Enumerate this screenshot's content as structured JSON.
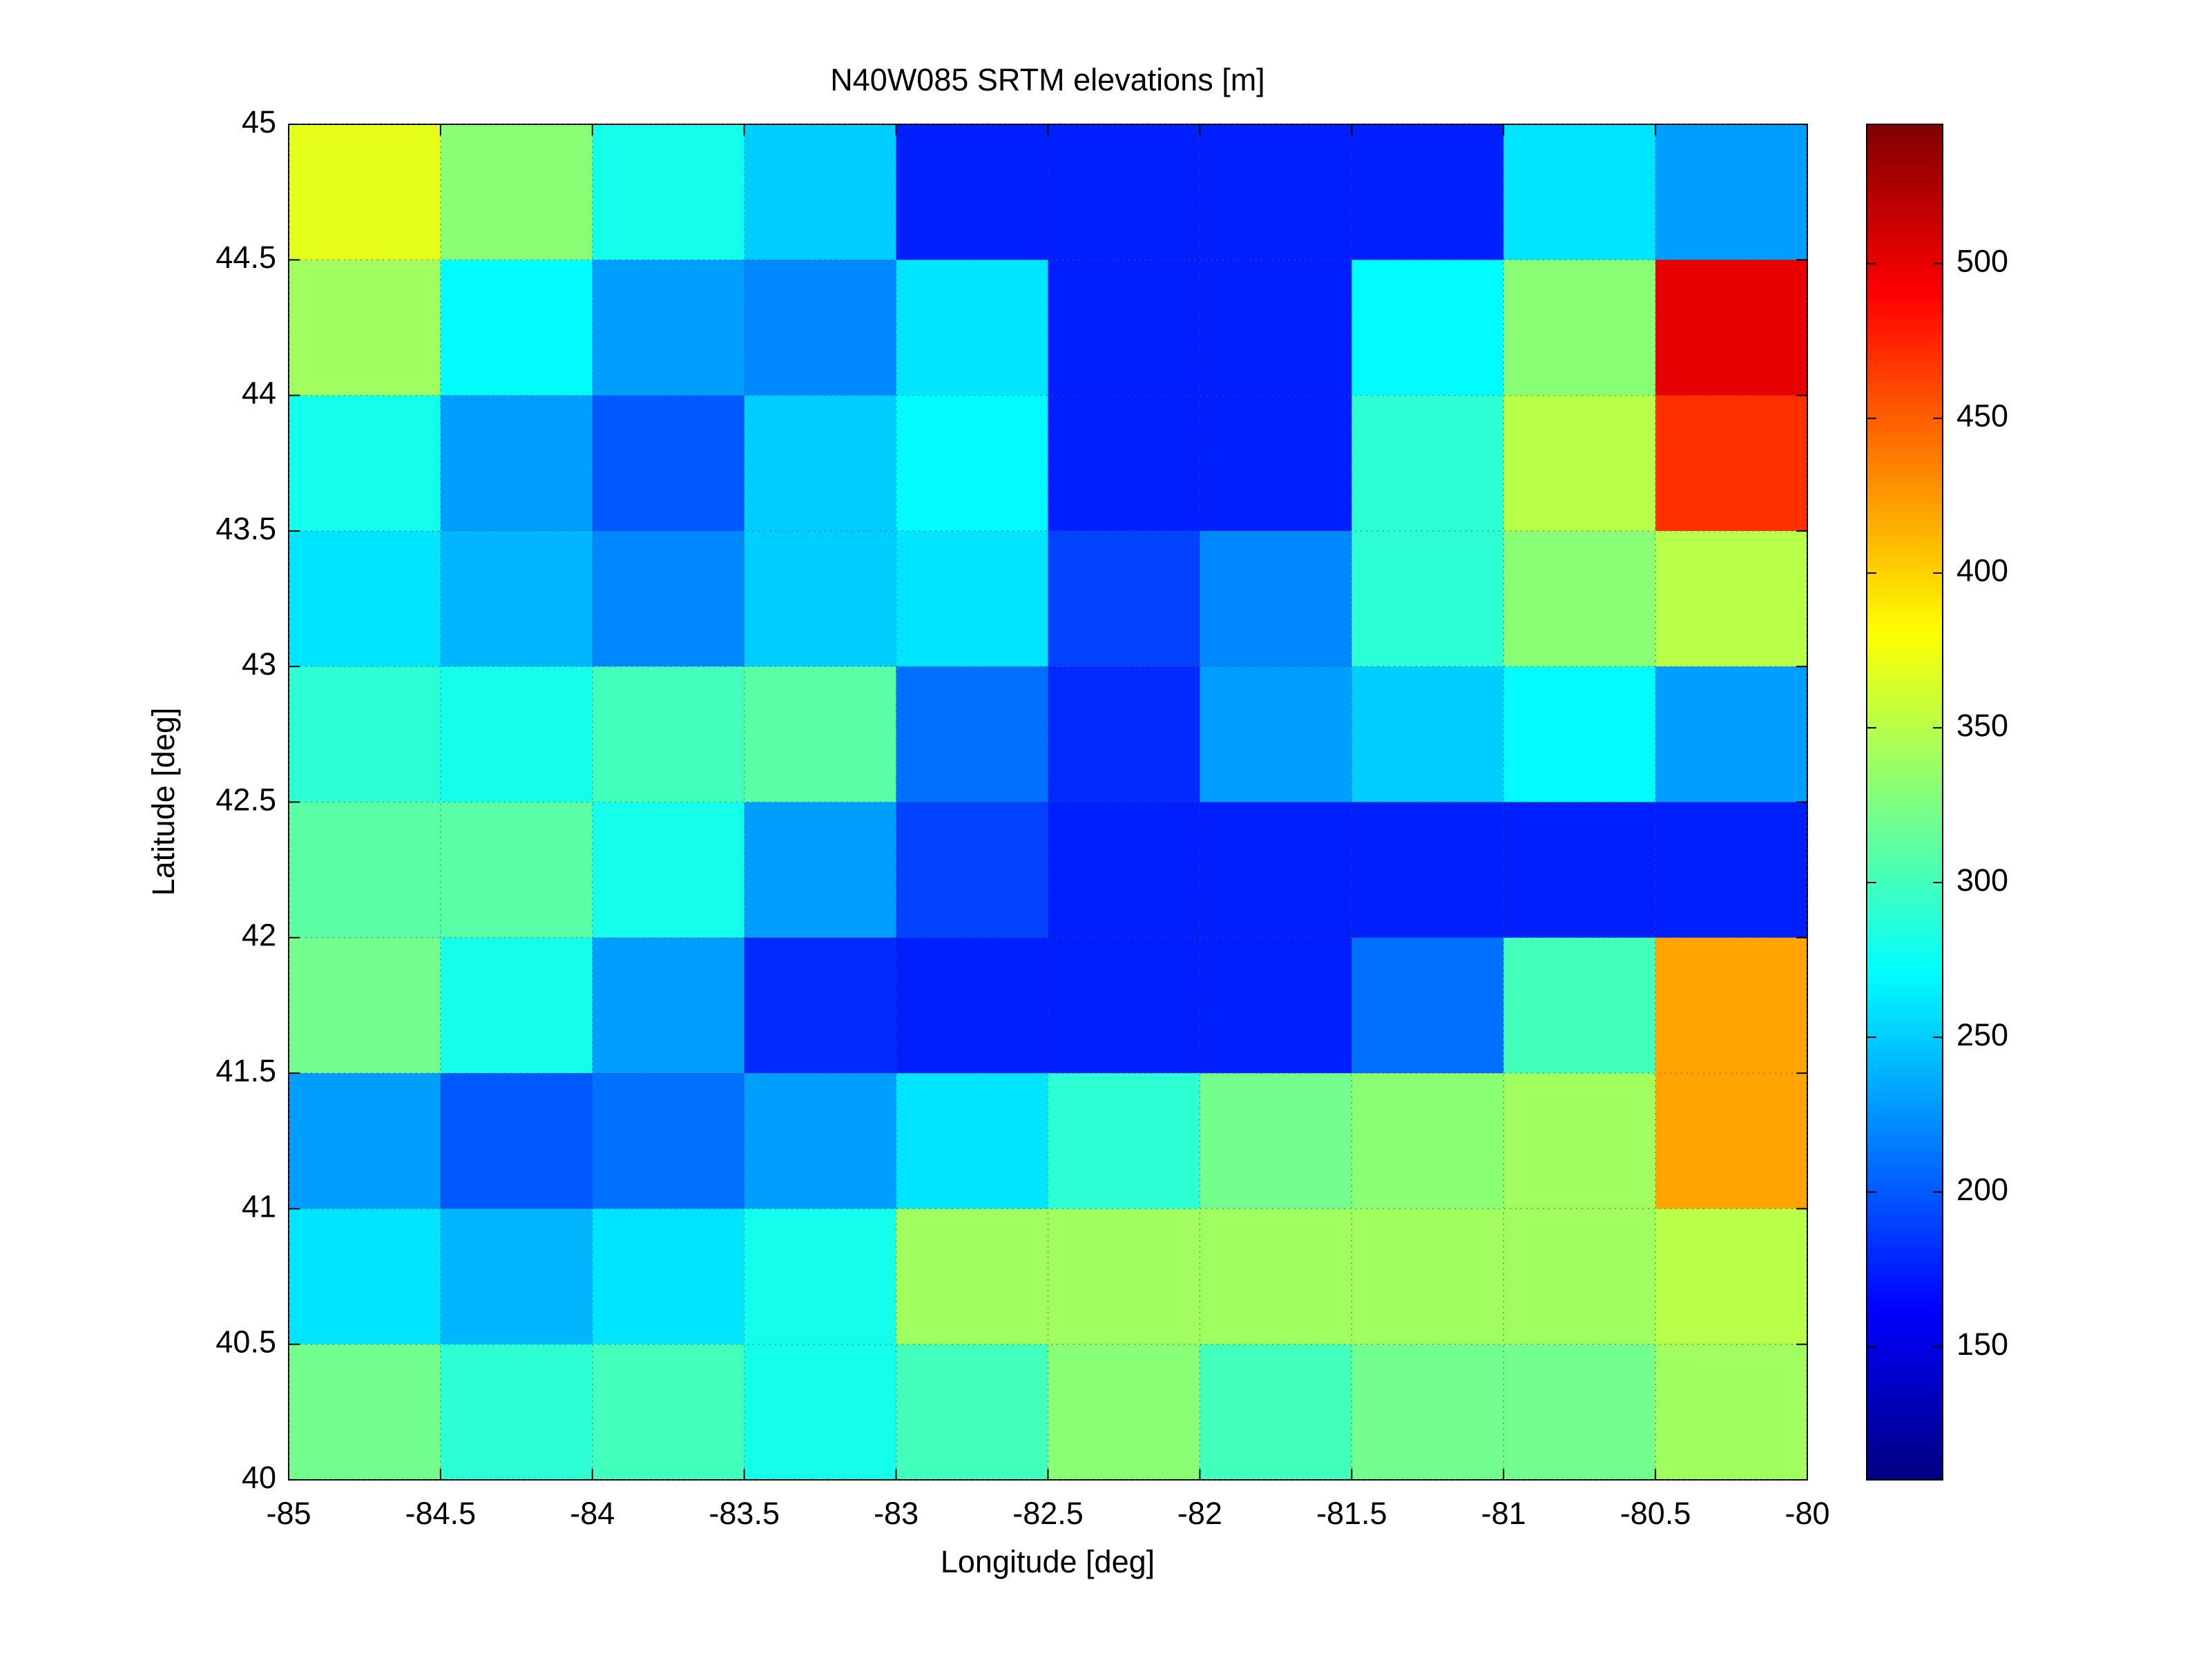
{
  "chart_data": {
    "type": "heatmap",
    "title": "N40W085 SRTM elevations [m]",
    "x_label": "Longitude [deg]",
    "y_label": "Latitude [deg]",
    "xlim": [
      -85,
      -80
    ],
    "ylim": [
      40,
      45
    ],
    "xticks": [
      -85,
      -84.5,
      -84,
      -83.5,
      -83,
      -82.5,
      -82,
      -81.5,
      -81,
      -80.5,
      -80
    ],
    "yticks": [
      40,
      40.5,
      41,
      41.5,
      42,
      42.5,
      43,
      43.5,
      44,
      44.5,
      45
    ],
    "grid": true,
    "colormap": "jet",
    "clim": [
      107,
      545
    ],
    "cticks": [
      150,
      200,
      250,
      300,
      350,
      400,
      450,
      500
    ],
    "z": [
      [
        370,
        330,
        280,
        250,
        175,
        175,
        175,
        175,
        260,
        230
      ],
      [
        340,
        270,
        230,
        220,
        260,
        175,
        175,
        270,
        330,
        500
      ],
      [
        280,
        230,
        200,
        250,
        270,
        175,
        175,
        290,
        350,
        470
      ],
      [
        260,
        240,
        220,
        250,
        260,
        190,
        220,
        290,
        330,
        350
      ],
      [
        290,
        280,
        300,
        310,
        210,
        180,
        230,
        250,
        270,
        230
      ],
      [
        310,
        310,
        280,
        230,
        190,
        175,
        175,
        175,
        175,
        175
      ],
      [
        320,
        280,
        230,
        180,
        175,
        175,
        175,
        210,
        300,
        420
      ],
      [
        230,
        200,
        210,
        230,
        260,
        290,
        320,
        330,
        340,
        420
      ],
      [
        260,
        240,
        260,
        280,
        340,
        340,
        340,
        340,
        340,
        350
      ],
      [
        320,
        290,
        300,
        280,
        300,
        330,
        300,
        320,
        320,
        340
      ]
    ]
  }
}
